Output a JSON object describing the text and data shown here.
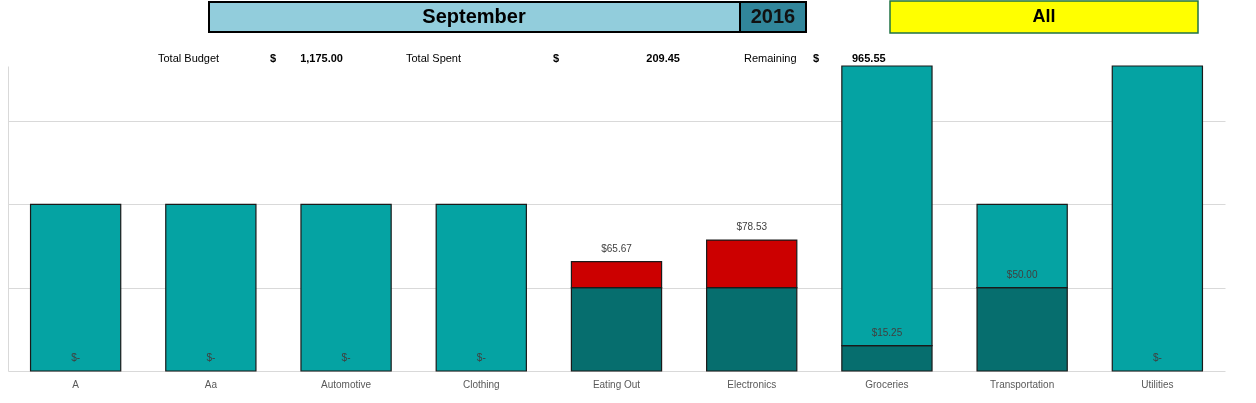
{
  "chart_data": {
    "type": "bar",
    "title": "September",
    "subtitle": "2016",
    "annotations": [
      "All",
      "Total Budget",
      "$",
      "1,175.00",
      "Total Spent",
      "$",
      "209.45",
      "Remaining",
      "$",
      "965.55",
      {
        "text": "$-",
        "x": "A",
        "y": 0
      },
      {
        "text": "$-",
        "x": "Aa",
        "y": 0
      },
      {
        "text": "$-",
        "x": "Automotive",
        "y": 0
      },
      {
        "text": "$-",
        "x": "Clothing",
        "y": 0
      },
      {
        "text": "$65.67",
        "x": "Eating Out",
        "y": 65.67
      },
      {
        "text": "$78.53",
        "x": "Electronics",
        "y": 78.53
      },
      {
        "text": "$-",
        "x": "Utilities",
        "y": 0
      }
    ],
    "categories": [
      "A",
      "Aa",
      "Automotive",
      "Clothing",
      "Eating Out",
      "Electronics",
      "Groceries",
      "Transportation",
      "Utilities"
    ],
    "stacked": true,
    "series": [
      {
        "color": "#066e6e",
        "values": [
          null,
          null,
          null,
          null,
          50,
          50,
          15.25,
          50,
          null
        ],
        "value_labels": [
          null,
          null,
          null,
          null,
          null,
          null,
          "$15.25",
          "$50.00",
          null
        ]
      },
      {
        "color": "#cc0000",
        "values": [
          null,
          null,
          null,
          null,
          15.67,
          28.53,
          null,
          null,
          null
        ]
      },
      {
        "color": "#05a3a3",
        "values": [
          100,
          100,
          100,
          100,
          null,
          null,
          167.75,
          50,
          183
        ]
      }
    ],
    "ylim": [
      0,
      183
    ],
    "yticks": [
      {
        "value": 0,
        "label": null
      },
      {
        "value": 50,
        "label": null
      },
      {
        "value": 100,
        "label": null
      },
      {
        "value": 150,
        "label": null
      }
    ],
    "grid": "y",
    "tick_labels": "x"
  }
}
